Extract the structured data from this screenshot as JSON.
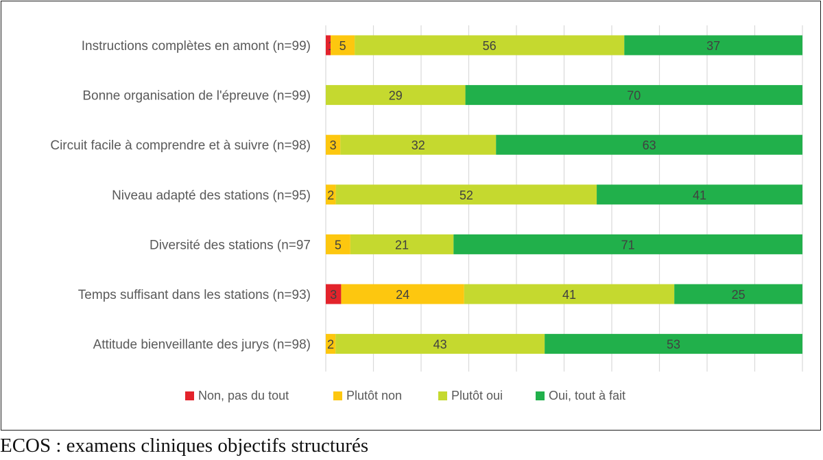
{
  "chart_data": {
    "type": "bar",
    "orientation": "horizontal",
    "stacked": true,
    "categories": [
      "Instructions complètes en amont (n=99)",
      "Bonne organisation de l'épreuve (n=99)",
      "Circuit facile à comprendre et à suivre (n=98)",
      "Niveau adapté des stations (n=95)",
      "Diversité des stations (n=97",
      "Temps suffisant dans les stations (n=93)",
      "Attitude bienveillante des jurys (n=98)"
    ],
    "series": [
      {
        "name": "Non, pas du tout",
        "color": "#e3232b",
        "values": [
          1,
          0,
          0,
          0,
          0,
          3,
          0
        ]
      },
      {
        "name": "Plutôt non",
        "color": "#fdc70f",
        "values": [
          5,
          0,
          3,
          2,
          5,
          24,
          2
        ]
      },
      {
        "name": "Plutôt oui",
        "color": "#c5d92f",
        "values": [
          56,
          29,
          32,
          52,
          21,
          41,
          43
        ]
      },
      {
        "name": "Oui, tout à fait",
        "color": "#21b04b",
        "values": [
          37,
          70,
          63,
          41,
          71,
          25,
          53
        ]
      }
    ],
    "data_labels": true,
    "grid": true,
    "gridline_count": 10,
    "legend_position": "bottom",
    "title": "",
    "xlabel": "",
    "ylabel": ""
  },
  "caption": "ECOS : examens cliniques objectifs structurés"
}
